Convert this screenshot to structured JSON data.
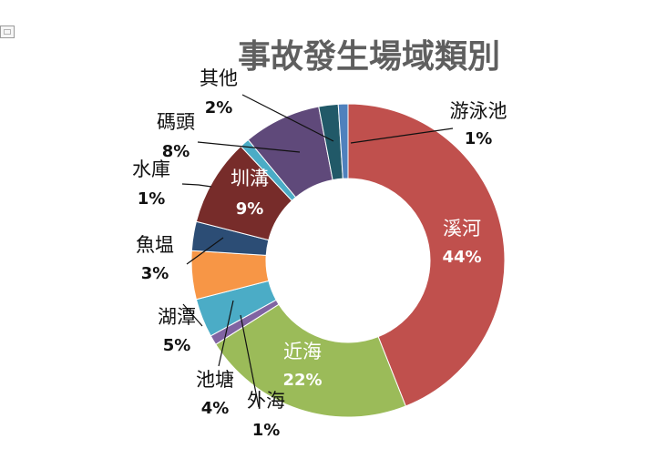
{
  "chart_data": {
    "type": "pie",
    "title": "事故發生場域類別",
    "categories": [
      "溪河",
      "近海",
      "外海",
      "池塘",
      "湖潭",
      "魚塭",
      "圳溝",
      "水庫",
      "碼頭",
      "其他",
      "游泳池"
    ],
    "values": [
      44,
      22,
      1,
      4,
      5,
      3,
      9,
      1,
      8,
      2,
      1
    ],
    "value_labels": [
      "44%",
      "22%",
      "1%",
      "4%",
      "5%",
      "3%",
      "9%",
      "1%",
      "8%",
      "2%",
      "1%"
    ],
    "colors": [
      "#c0504d",
      "#9bbb59",
      "#8064a2",
      "#4bacc6",
      "#f79646",
      "#2c4d75",
      "#772c2a",
      "#4bacc6",
      "#5f497a",
      "#215968",
      "#4f81bd"
    ],
    "style": "doughnut"
  }
}
